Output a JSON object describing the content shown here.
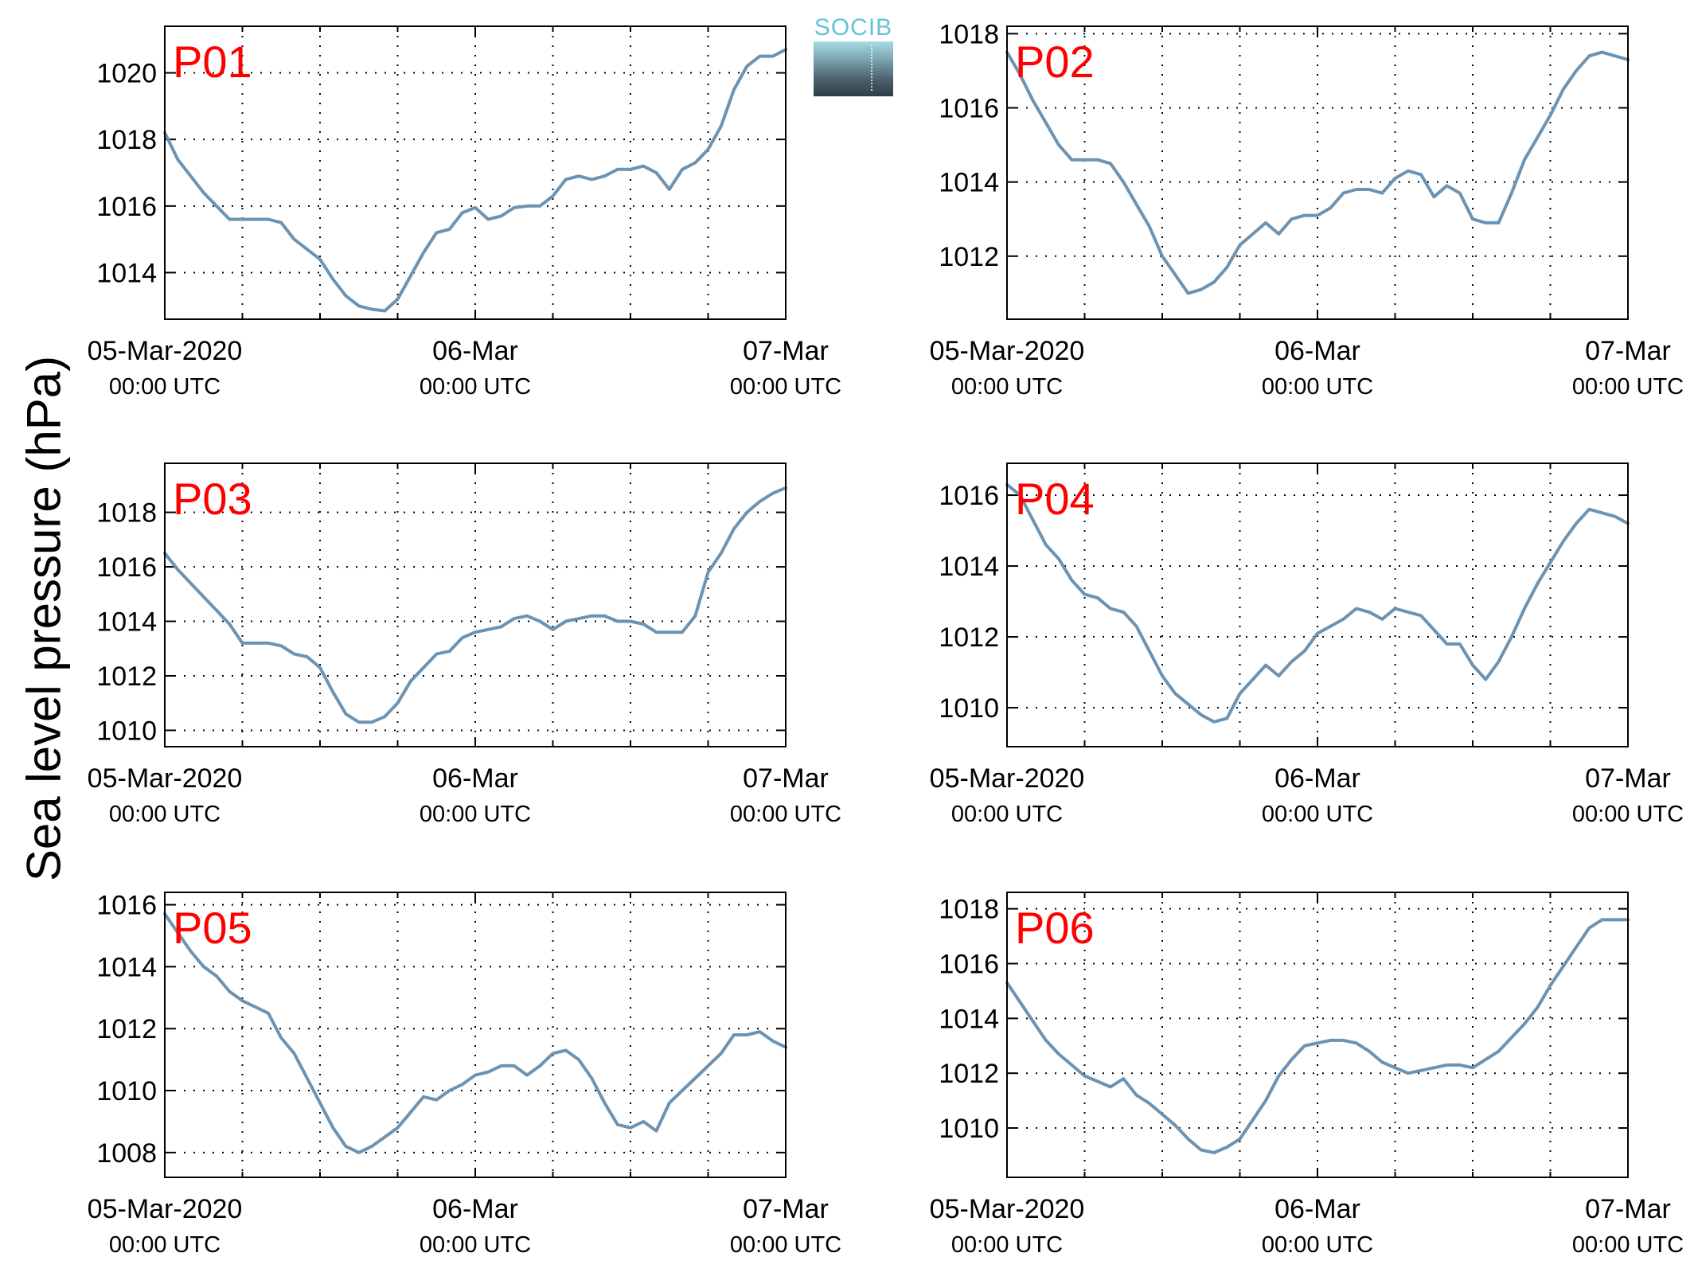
{
  "ylabel": "Sea level pressure (hPa)",
  "logo": {
    "text": "SOCIB",
    "color_text": "#63c3d8"
  },
  "style": {
    "line_color": "#6b93b3",
    "label_color": "#ff0000",
    "grid": "dotted"
  },
  "chart_data": [
    {
      "type": "line",
      "title": "P01",
      "x_unit": "hours since 05-Mar-2020 00:00 UTC",
      "xlim": [
        0,
        48
      ],
      "ylim": [
        1012.6,
        1021.4
      ],
      "yticks": [
        1014,
        1016,
        1018,
        1020
      ],
      "xtick_labels": [
        [
          "05-Mar-2020",
          "00:00 UTC"
        ],
        [
          "06-Mar",
          "00:00 UTC"
        ],
        [
          "07-Mar",
          "00:00 UTC"
        ]
      ],
      "x": [
        0,
        1,
        2,
        3,
        4,
        5,
        6,
        7,
        8,
        9,
        10,
        11,
        12,
        13,
        14,
        15,
        16,
        17,
        18,
        19,
        20,
        21,
        22,
        23,
        24,
        25,
        26,
        27,
        28,
        29,
        30,
        31,
        32,
        33,
        34,
        35,
        36,
        37,
        38,
        39,
        40,
        41,
        42,
        43,
        44,
        45,
        46,
        47,
        48
      ],
      "y": [
        1018.2,
        1017.4,
        1016.9,
        1016.4,
        1016.0,
        1015.6,
        1015.6,
        1015.6,
        1015.6,
        1015.5,
        1015.0,
        1014.7,
        1014.4,
        1013.8,
        1013.3,
        1013.0,
        1012.9,
        1012.85,
        1013.2,
        1013.9,
        1014.6,
        1015.2,
        1015.3,
        1015.8,
        1015.95,
        1015.6,
        1015.7,
        1015.95,
        1016.0,
        1016.0,
        1016.3,
        1016.8,
        1016.9,
        1016.8,
        1016.9,
        1017.1,
        1017.1,
        1017.2,
        1017.0,
        1016.5,
        1017.1,
        1017.3,
        1017.7,
        1018.4,
        1019.5,
        1020.2,
        1020.5,
        1020.5,
        1020.7
      ]
    },
    {
      "type": "line",
      "title": "P02",
      "x_unit": "hours since 05-Mar-2020 00:00 UTC",
      "xlim": [
        0,
        48
      ],
      "ylim": [
        1010.3,
        1018.2
      ],
      "yticks": [
        1012,
        1014,
        1016,
        1018
      ],
      "xtick_labels": [
        [
          "05-Mar-2020",
          "00:00 UTC"
        ],
        [
          "06-Mar",
          "00:00 UTC"
        ],
        [
          "07-Mar",
          "00:00 UTC"
        ]
      ],
      "x": [
        0,
        1,
        2,
        3,
        4,
        5,
        6,
        7,
        8,
        9,
        10,
        11,
        12,
        13,
        14,
        15,
        16,
        17,
        18,
        19,
        20,
        21,
        22,
        23,
        24,
        25,
        26,
        27,
        28,
        29,
        30,
        31,
        32,
        33,
        34,
        35,
        36,
        37,
        38,
        39,
        40,
        41,
        42,
        43,
        44,
        45,
        46,
        47,
        48
      ],
      "y": [
        1017.5,
        1016.9,
        1016.2,
        1015.6,
        1015.0,
        1014.6,
        1014.6,
        1014.6,
        1014.5,
        1014.0,
        1013.4,
        1012.8,
        1012.0,
        1011.5,
        1011.0,
        1011.1,
        1011.3,
        1011.7,
        1012.3,
        1012.6,
        1012.9,
        1012.6,
        1013.0,
        1013.1,
        1013.1,
        1013.3,
        1013.7,
        1013.8,
        1013.8,
        1013.7,
        1014.1,
        1014.3,
        1014.2,
        1013.6,
        1013.9,
        1013.7,
        1013.0,
        1012.9,
        1012.9,
        1013.7,
        1014.6,
        1015.2,
        1015.8,
        1016.5,
        1017.0,
        1017.4,
        1017.5,
        1017.4,
        1017.3
      ]
    },
    {
      "type": "line",
      "title": "P03",
      "x_unit": "hours since 05-Mar-2020 00:00 UTC",
      "xlim": [
        0,
        48
      ],
      "ylim": [
        1009.4,
        1019.8
      ],
      "yticks": [
        1010,
        1012,
        1014,
        1016,
        1018
      ],
      "xtick_labels": [
        [
          "05-Mar-2020",
          "00:00 UTC"
        ],
        [
          "06-Mar",
          "00:00 UTC"
        ],
        [
          "07-Mar",
          "00:00 UTC"
        ]
      ],
      "x": [
        0,
        1,
        2,
        3,
        4,
        5,
        6,
        7,
        8,
        9,
        10,
        11,
        12,
        13,
        14,
        15,
        16,
        17,
        18,
        19,
        20,
        21,
        22,
        23,
        24,
        25,
        26,
        27,
        28,
        29,
        30,
        31,
        32,
        33,
        34,
        35,
        36,
        37,
        38,
        39,
        40,
        41,
        42,
        43,
        44,
        45,
        46,
        47,
        48
      ],
      "y": [
        1016.5,
        1015.9,
        1015.4,
        1014.9,
        1014.4,
        1013.9,
        1013.2,
        1013.2,
        1013.2,
        1013.1,
        1012.8,
        1012.7,
        1012.3,
        1011.4,
        1010.6,
        1010.3,
        1010.3,
        1010.5,
        1011.0,
        1011.8,
        1012.3,
        1012.8,
        1012.9,
        1013.4,
        1013.6,
        1013.7,
        1013.8,
        1014.1,
        1014.2,
        1014.0,
        1013.7,
        1014.0,
        1014.1,
        1014.2,
        1014.2,
        1014.0,
        1014.0,
        1013.9,
        1013.6,
        1013.6,
        1013.6,
        1014.2,
        1015.8,
        1016.5,
        1017.4,
        1018.0,
        1018.4,
        1018.7,
        1018.9
      ]
    },
    {
      "type": "line",
      "title": "P04",
      "x_unit": "hours since 05-Mar-2020 00:00 UTC",
      "xlim": [
        0,
        48
      ],
      "ylim": [
        1008.9,
        1016.9
      ],
      "yticks": [
        1010,
        1012,
        1014,
        1016
      ],
      "xtick_labels": [
        [
          "05-Mar-2020",
          "00:00 UTC"
        ],
        [
          "06-Mar",
          "00:00 UTC"
        ],
        [
          "07-Mar",
          "00:00 UTC"
        ]
      ],
      "x": [
        0,
        1,
        2,
        3,
        4,
        5,
        6,
        7,
        8,
        9,
        10,
        11,
        12,
        13,
        14,
        15,
        16,
        17,
        18,
        19,
        20,
        21,
        22,
        23,
        24,
        25,
        26,
        27,
        28,
        29,
        30,
        31,
        32,
        33,
        34,
        35,
        36,
        37,
        38,
        39,
        40,
        41,
        42,
        43,
        44,
        45,
        46,
        47,
        48
      ],
      "y": [
        1016.3,
        1016.0,
        1015.3,
        1014.6,
        1014.2,
        1013.6,
        1013.2,
        1013.1,
        1012.8,
        1012.7,
        1012.3,
        1011.6,
        1010.9,
        1010.4,
        1010.1,
        1009.8,
        1009.6,
        1009.7,
        1010.4,
        1010.8,
        1011.2,
        1010.9,
        1011.3,
        1011.6,
        1012.1,
        1012.3,
        1012.5,
        1012.8,
        1012.7,
        1012.5,
        1012.8,
        1012.7,
        1012.6,
        1012.2,
        1011.8,
        1011.8,
        1011.2,
        1010.8,
        1011.3,
        1012.0,
        1012.8,
        1013.5,
        1014.1,
        1014.7,
        1015.2,
        1015.6,
        1015.5,
        1015.4,
        1015.2
      ]
    },
    {
      "type": "line",
      "title": "P05",
      "x_unit": "hours since 05-Mar-2020 00:00 UTC",
      "xlim": [
        0,
        48
      ],
      "ylim": [
        1007.2,
        1016.4
      ],
      "yticks": [
        1008,
        1010,
        1012,
        1014,
        1016
      ],
      "xtick_labels": [
        [
          "05-Mar-2020",
          "00:00 UTC"
        ],
        [
          "06-Mar",
          "00:00 UTC"
        ],
        [
          "07-Mar",
          "00:00 UTC"
        ]
      ],
      "x": [
        0,
        1,
        2,
        3,
        4,
        5,
        6,
        7,
        8,
        9,
        10,
        11,
        12,
        13,
        14,
        15,
        16,
        17,
        18,
        19,
        20,
        21,
        22,
        23,
        24,
        25,
        26,
        27,
        28,
        29,
        30,
        31,
        32,
        33,
        34,
        35,
        36,
        37,
        38,
        39,
        40,
        41,
        42,
        43,
        44,
        45,
        46,
        47,
        48
      ],
      "y": [
        1015.7,
        1015.1,
        1014.5,
        1014.0,
        1013.7,
        1013.2,
        1012.9,
        1012.7,
        1012.5,
        1011.7,
        1011.2,
        1010.4,
        1009.6,
        1008.8,
        1008.2,
        1008.0,
        1008.2,
        1008.5,
        1008.8,
        1009.3,
        1009.8,
        1009.7,
        1010.0,
        1010.2,
        1010.5,
        1010.6,
        1010.8,
        1010.8,
        1010.5,
        1010.8,
        1011.2,
        1011.3,
        1011.0,
        1010.4,
        1009.6,
        1008.9,
        1008.8,
        1009.0,
        1008.7,
        1009.6,
        1010.0,
        1010.4,
        1010.8,
        1011.2,
        1011.8,
        1011.8,
        1011.9,
        1011.6,
        1011.4
      ]
    },
    {
      "type": "line",
      "title": "P06",
      "x_unit": "hours since 05-Mar-2020 00:00 UTC",
      "xlim": [
        0,
        48
      ],
      "ylim": [
        1008.2,
        1018.6
      ],
      "yticks": [
        1010,
        1012,
        1014,
        1016,
        1018
      ],
      "xtick_labels": [
        [
          "05-Mar-2020",
          "00:00 UTC"
        ],
        [
          "06-Mar",
          "00:00 UTC"
        ],
        [
          "07-Mar",
          "00:00 UTC"
        ]
      ],
      "x": [
        0,
        1,
        2,
        3,
        4,
        5,
        6,
        7,
        8,
        9,
        10,
        11,
        12,
        13,
        14,
        15,
        16,
        17,
        18,
        19,
        20,
        21,
        22,
        23,
        24,
        25,
        26,
        27,
        28,
        29,
        30,
        31,
        32,
        33,
        34,
        35,
        36,
        37,
        38,
        39,
        40,
        41,
        42,
        43,
        44,
        45,
        46,
        47,
        48
      ],
      "y": [
        1015.3,
        1014.6,
        1013.9,
        1013.2,
        1012.7,
        1012.3,
        1011.9,
        1011.7,
        1011.5,
        1011.8,
        1011.2,
        1010.9,
        1010.5,
        1010.1,
        1009.6,
        1009.2,
        1009.1,
        1009.3,
        1009.6,
        1010.3,
        1011.0,
        1011.9,
        1012.5,
        1013.0,
        1013.1,
        1013.2,
        1013.2,
        1013.1,
        1012.8,
        1012.4,
        1012.2,
        1012.0,
        1012.1,
        1012.2,
        1012.3,
        1012.3,
        1012.2,
        1012.5,
        1012.8,
        1013.3,
        1013.8,
        1014.4,
        1015.2,
        1015.9,
        1016.6,
        1017.3,
        1017.6,
        1017.6,
        1017.6
      ]
    }
  ]
}
